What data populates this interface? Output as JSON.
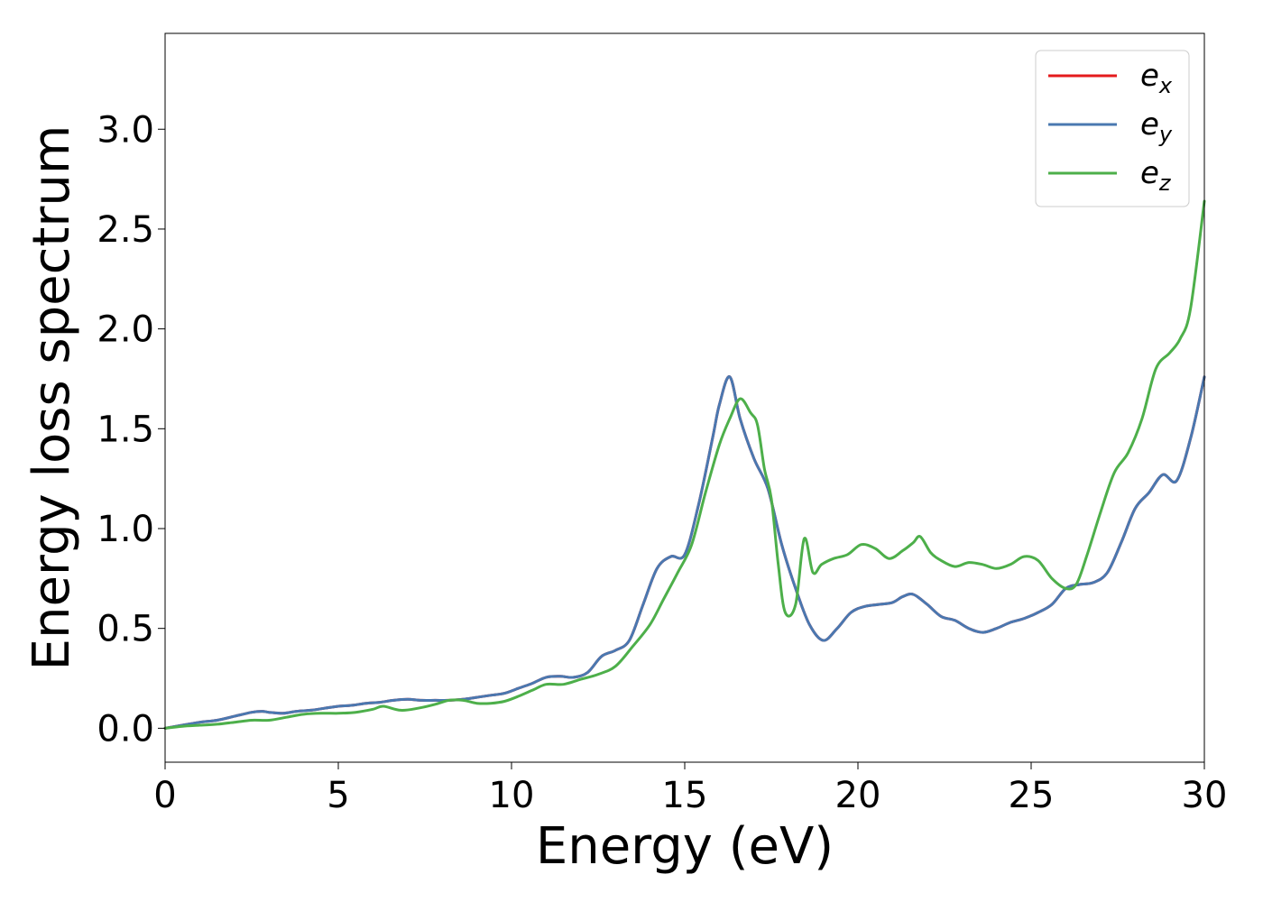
{
  "chart_data": {
    "type": "line",
    "title": "",
    "xlabel": "Energy (eV)",
    "ylabel": "Energy loss spectrum",
    "xlim": [
      0,
      30
    ],
    "ylim": [
      -0.17,
      3.48
    ],
    "xticks": [
      0,
      5,
      10,
      15,
      20,
      25,
      30
    ],
    "xtick_labels": [
      "0",
      "5",
      "10",
      "15",
      "20",
      "25",
      "30"
    ],
    "yticks": [
      0.0,
      0.5,
      1.0,
      1.5,
      2.0,
      2.5,
      3.0
    ],
    "ytick_labels": [
      "0.0",
      "0.5",
      "1.0",
      "1.5",
      "2.0",
      "2.5",
      "3.0"
    ],
    "grid": false,
    "legend_position": "top-right",
    "series": [
      {
        "name": "e_x",
        "legend_main": "e",
        "legend_sub": "x",
        "color": "#e41a1c",
        "x": [
          0,
          0.5,
          1,
          1.5,
          2,
          2.5,
          2.8,
          3,
          3.4,
          3.8,
          4.2,
          4.6,
          5,
          5.4,
          5.8,
          6.2,
          6.6,
          7,
          7.4,
          7.8,
          8.2,
          8.6,
          9,
          9.4,
          9.8,
          10.2,
          10.6,
          11,
          11.4,
          11.8,
          12.2,
          12.6,
          13,
          13.4,
          13.8,
          14.2,
          14.6,
          15,
          15.4,
          15.8,
          16.0,
          16.3,
          16.6,
          17.0,
          17.4,
          17.8,
          18.2,
          18.6,
          19.0,
          19.4,
          19.8,
          20.2,
          20.6,
          21.0,
          21.3,
          21.6,
          22.0,
          22.4,
          22.8,
          23.2,
          23.6,
          24.0,
          24.4,
          24.8,
          25.2,
          25.6,
          26.0,
          26.4,
          26.8,
          27.2,
          27.6,
          28.0,
          28.4,
          28.8,
          29.2,
          29.6,
          30.0
        ],
        "values": [
          0,
          0.015,
          0.03,
          0.04,
          0.06,
          0.08,
          0.085,
          0.08,
          0.075,
          0.085,
          0.09,
          0.1,
          0.11,
          0.115,
          0.125,
          0.13,
          0.14,
          0.145,
          0.14,
          0.14,
          0.14,
          0.145,
          0.155,
          0.165,
          0.175,
          0.2,
          0.225,
          0.255,
          0.26,
          0.255,
          0.28,
          0.36,
          0.39,
          0.44,
          0.62,
          0.8,
          0.86,
          0.87,
          1.12,
          1.45,
          1.62,
          1.76,
          1.55,
          1.35,
          1.2,
          0.92,
          0.7,
          0.52,
          0.44,
          0.5,
          0.58,
          0.61,
          0.62,
          0.63,
          0.66,
          0.67,
          0.62,
          0.56,
          0.54,
          0.5,
          0.48,
          0.5,
          0.53,
          0.55,
          0.58,
          0.62,
          0.7,
          0.72,
          0.73,
          0.78,
          0.93,
          1.1,
          1.18,
          1.27,
          1.24,
          1.45,
          1.76
        ]
      },
      {
        "name": "e_y",
        "legend_main": "e",
        "legend_sub": "y",
        "color": "#4a78b0",
        "x": [
          0,
          0.5,
          1,
          1.5,
          2,
          2.5,
          2.8,
          3,
          3.4,
          3.8,
          4.2,
          4.6,
          5,
          5.4,
          5.8,
          6.2,
          6.6,
          7,
          7.4,
          7.8,
          8.2,
          8.6,
          9,
          9.4,
          9.8,
          10.2,
          10.6,
          11,
          11.4,
          11.8,
          12.2,
          12.6,
          13,
          13.4,
          13.8,
          14.2,
          14.6,
          15,
          15.4,
          15.8,
          16.0,
          16.3,
          16.6,
          17.0,
          17.4,
          17.8,
          18.2,
          18.6,
          19.0,
          19.4,
          19.8,
          20.2,
          20.6,
          21.0,
          21.3,
          21.6,
          22.0,
          22.4,
          22.8,
          23.2,
          23.6,
          24.0,
          24.4,
          24.8,
          25.2,
          25.6,
          26.0,
          26.4,
          26.8,
          27.2,
          27.6,
          28.0,
          28.4,
          28.8,
          29.2,
          29.6,
          30.0
        ],
        "values": [
          0,
          0.015,
          0.03,
          0.04,
          0.06,
          0.08,
          0.085,
          0.08,
          0.075,
          0.085,
          0.09,
          0.1,
          0.11,
          0.115,
          0.125,
          0.13,
          0.14,
          0.145,
          0.14,
          0.14,
          0.14,
          0.145,
          0.155,
          0.165,
          0.175,
          0.2,
          0.225,
          0.255,
          0.26,
          0.255,
          0.28,
          0.36,
          0.39,
          0.44,
          0.62,
          0.8,
          0.86,
          0.87,
          1.12,
          1.45,
          1.62,
          1.76,
          1.55,
          1.35,
          1.2,
          0.92,
          0.7,
          0.52,
          0.44,
          0.5,
          0.58,
          0.61,
          0.62,
          0.63,
          0.66,
          0.67,
          0.62,
          0.56,
          0.54,
          0.5,
          0.48,
          0.5,
          0.53,
          0.55,
          0.58,
          0.62,
          0.7,
          0.72,
          0.73,
          0.78,
          0.93,
          1.1,
          1.18,
          1.27,
          1.24,
          1.45,
          1.76
        ]
      },
      {
        "name": "e_z",
        "legend_main": "e",
        "legend_sub": "z",
        "color": "#4daf4a",
        "x": [
          0,
          0.5,
          1,
          1.5,
          2,
          2.5,
          3,
          3.5,
          4,
          4.5,
          5,
          5.5,
          6,
          6.3,
          6.8,
          7.3,
          7.8,
          8.2,
          8.6,
          9,
          9.4,
          9.8,
          10.2,
          10.6,
          11,
          11.5,
          12,
          12.5,
          13,
          13.5,
          14,
          14.4,
          14.8,
          15.2,
          15.6,
          16.0,
          16.3,
          16.6,
          16.9,
          17.1,
          17.3,
          17.5,
          17.7,
          17.9,
          18.2,
          18.45,
          18.7,
          18.95,
          19.3,
          19.7,
          20.1,
          20.5,
          20.9,
          21.3,
          21.6,
          21.8,
          22.1,
          22.4,
          22.8,
          23.2,
          23.6,
          24.0,
          24.4,
          24.8,
          25.2,
          25.6,
          26.0,
          26.3,
          26.6,
          27.0,
          27.4,
          27.8,
          28.2,
          28.6,
          29.0,
          29.3,
          29.6,
          30.0
        ],
        "values": [
          0,
          0.01,
          0.015,
          0.02,
          0.03,
          0.04,
          0.04,
          0.055,
          0.07,
          0.075,
          0.075,
          0.08,
          0.095,
          0.11,
          0.09,
          0.1,
          0.12,
          0.14,
          0.14,
          0.125,
          0.125,
          0.135,
          0.16,
          0.19,
          0.22,
          0.22,
          0.245,
          0.27,
          0.31,
          0.41,
          0.52,
          0.65,
          0.78,
          0.92,
          1.18,
          1.42,
          1.55,
          1.65,
          1.58,
          1.52,
          1.3,
          1.15,
          0.82,
          0.58,
          0.62,
          0.95,
          0.78,
          0.82,
          0.85,
          0.87,
          0.92,
          0.9,
          0.85,
          0.89,
          0.93,
          0.96,
          0.88,
          0.84,
          0.81,
          0.83,
          0.82,
          0.8,
          0.82,
          0.86,
          0.84,
          0.75,
          0.7,
          0.72,
          0.86,
          1.08,
          1.28,
          1.38,
          1.55,
          1.8,
          1.88,
          1.95,
          2.1,
          2.64
        ]
      }
    ]
  }
}
